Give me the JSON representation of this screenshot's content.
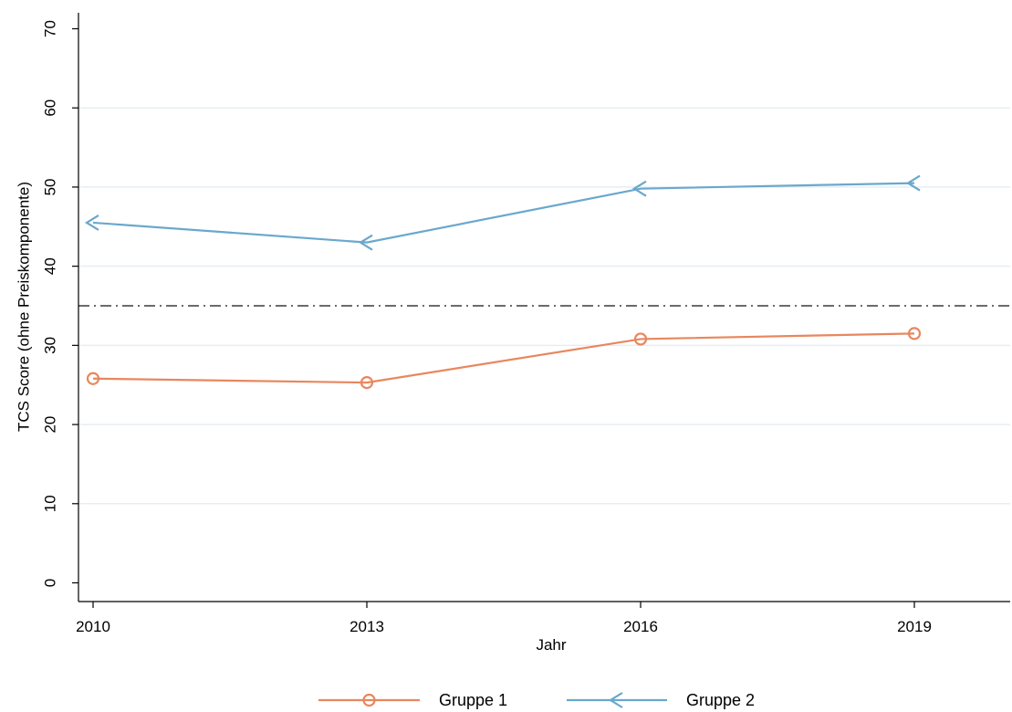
{
  "chart_data": {
    "type": "line",
    "xlabel": "Jahr",
    "ylabel": "TCS Score (ohne Preiskomponente)",
    "x": [
      2010,
      2013,
      2016,
      2019
    ],
    "xlim": [
      2010,
      2020
    ],
    "ylim": [
      0,
      70
    ],
    "xticks": [
      2010,
      2013,
      2016,
      2019
    ],
    "yticks": [
      0,
      10,
      20,
      30,
      40,
      50,
      60,
      70
    ],
    "grid": "horizontal",
    "reference_line": {
      "y": 35,
      "style": "dash-dot",
      "color": "#6b6b6b"
    },
    "legend": "bottom",
    "series": [
      {
        "name": "Gruppe 1",
        "values": [
          25.8,
          25.3,
          30.8,
          31.5
        ],
        "color": "#e8875e",
        "marker": "circle"
      },
      {
        "name": "Gruppe 2",
        "values": [
          45.5,
          43.0,
          49.8,
          50.5
        ],
        "color": "#6aa8cc",
        "marker": "chevron-left"
      }
    ]
  }
}
